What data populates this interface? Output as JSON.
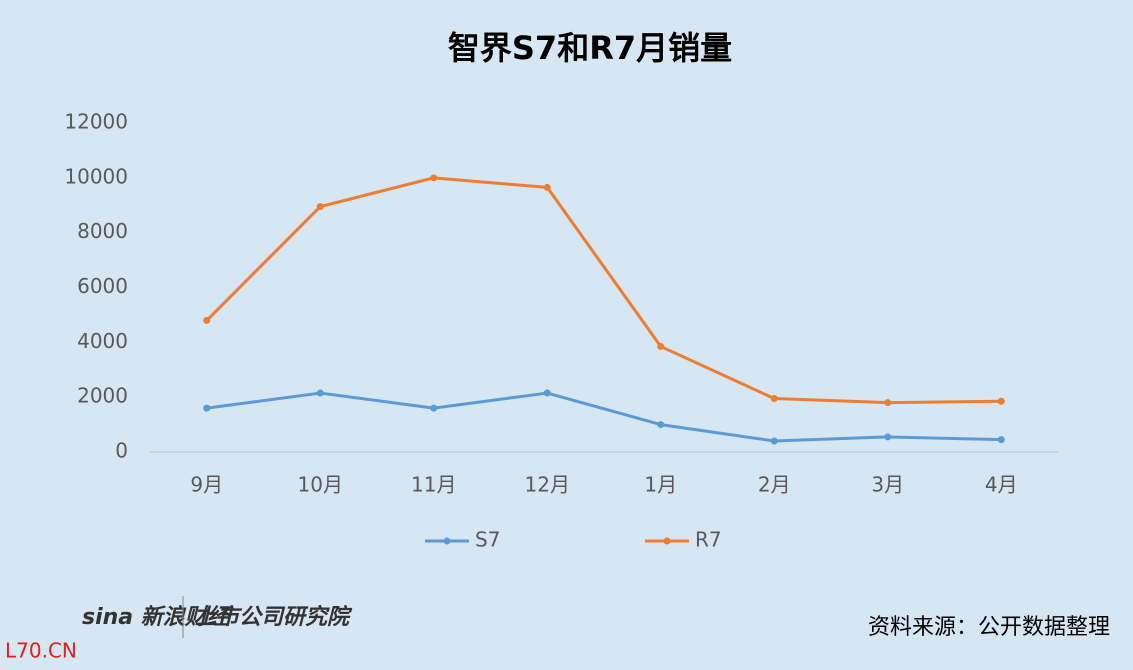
{
  "chart_data": {
    "type": "line",
    "title": "智界S7和R7月销量",
    "categories": [
      "9月",
      "10月",
      "11月",
      "12月",
      "1月",
      "2月",
      "3月",
      "4月"
    ],
    "series": [
      {
        "name": "S7",
        "color": "#5b9bd5",
        "values": [
          1600,
          2150,
          1600,
          2150,
          1000,
          400,
          550,
          450
        ]
      },
      {
        "name": "R7",
        "color": "#ed7d31",
        "values": [
          4800,
          8950,
          10000,
          9650,
          3850,
          1950,
          1800,
          1850
        ]
      }
    ],
    "ylim": [
      0,
      12000
    ],
    "yticks": [
      0,
      2000,
      4000,
      6000,
      8000,
      10000,
      12000
    ],
    "grid": false,
    "legend": "bottom"
  },
  "footer": {
    "logo_left": "sina 新浪财经",
    "logo_right": "上市公司研究院",
    "source": "资料来源：公开数据整理",
    "site": "L70.CN"
  }
}
